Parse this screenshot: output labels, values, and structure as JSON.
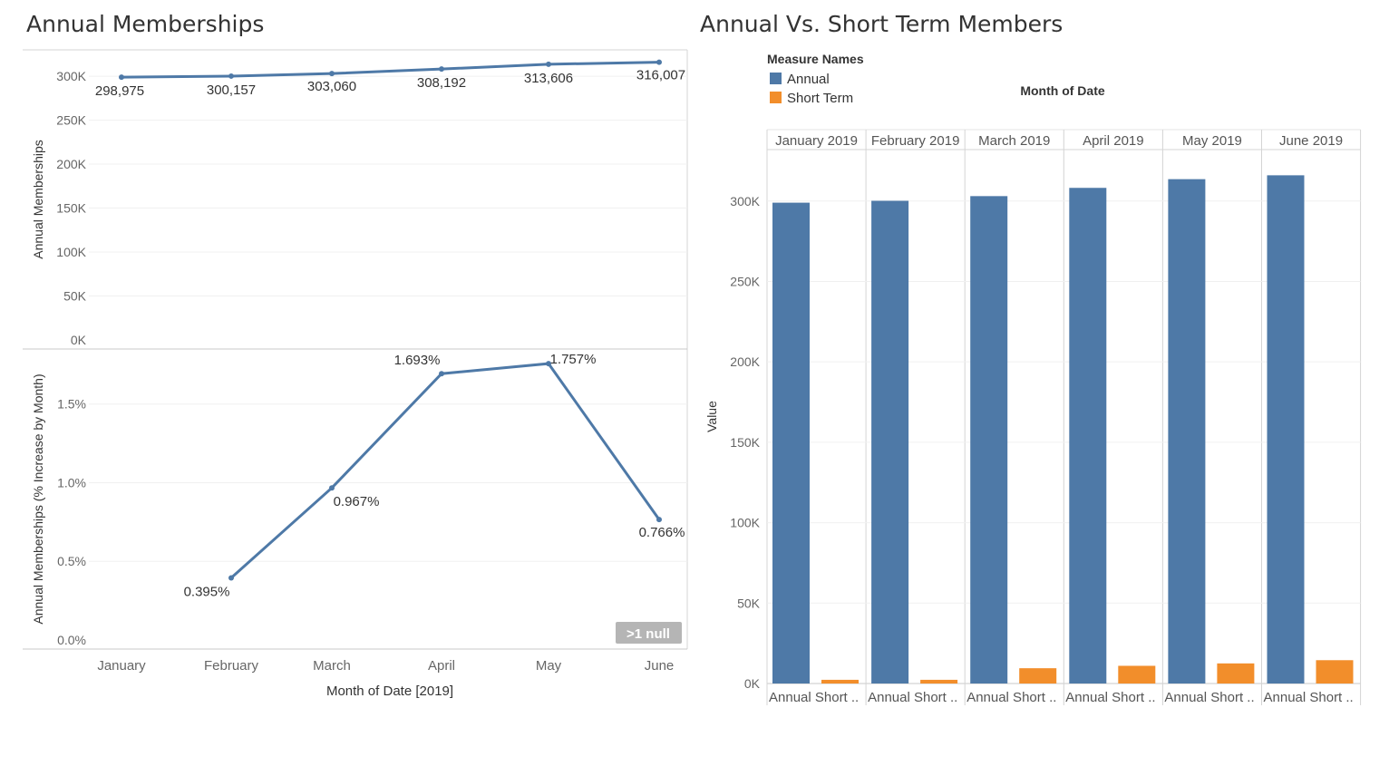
{
  "left": {
    "title": "Annual Memberships",
    "x_axis_title": "Month of Date [2019]",
    "null_badge": ">1 null",
    "chart_data": [
      {
        "type": "line",
        "categories": [
          "January",
          "February",
          "March",
          "April",
          "May",
          "June"
        ],
        "values": [
          298975,
          300157,
          303060,
          308192,
          313606,
          316007
        ],
        "labels": [
          "298,975",
          "300,157",
          "303,060",
          "308,192",
          "313,606",
          "316,007"
        ],
        "ylabel": "Annual Memberships",
        "ylim": [
          0,
          330000
        ],
        "yticks": [
          0,
          50000,
          100000,
          150000,
          200000,
          250000,
          300000
        ],
        "ytick_labels": [
          "0K",
          "50K",
          "100K",
          "150K",
          "200K",
          "250K",
          "300K"
        ],
        "color": "#4e79a7"
      },
      {
        "type": "line",
        "categories": [
          "January",
          "February",
          "March",
          "April",
          "May",
          "June"
        ],
        "values": [
          null,
          0.395,
          0.967,
          1.693,
          1.757,
          0.766
        ],
        "labels": [
          "",
          "0.395%",
          "0.967%",
          "1.693%",
          "1.757%",
          "0.766%"
        ],
        "ylabel": "Annual Memberships (% Increase by Month)",
        "ylim": [
          0,
          1.85
        ],
        "yticks": [
          0,
          0.5,
          1.0,
          1.5
        ],
        "ytick_labels": [
          "0.0%",
          "0.5%",
          "1.0%",
          "1.5%"
        ],
        "color": "#4e79a7"
      }
    ]
  },
  "right": {
    "title": "Annual Vs. Short Term Members",
    "legend_title": "Measure Names",
    "column_header_title": "Month of Date",
    "chart_data": {
      "type": "bar",
      "categories": [
        "January 2019",
        "February 2019",
        "March 2019",
        "April 2019",
        "May 2019",
        "June 2019"
      ],
      "sub_categories": [
        "Annual",
        "Short .."
      ],
      "series": [
        {
          "name": "Annual",
          "color": "#4e79a7",
          "values": [
            298975,
            300157,
            303060,
            308192,
            313606,
            316007
          ]
        },
        {
          "name": "Short Term",
          "color": "#f28e2b",
          "values": [
            2300,
            2300,
            9500,
            11000,
            12500,
            14500
          ]
        }
      ],
      "ylabel": "Value",
      "ylim": [
        0,
        332000
      ],
      "yticks": [
        0,
        50000,
        100000,
        150000,
        200000,
        250000,
        300000
      ],
      "ytick_labels": [
        "0K",
        "50K",
        "100K",
        "150K",
        "200K",
        "250K",
        "300K"
      ]
    }
  }
}
